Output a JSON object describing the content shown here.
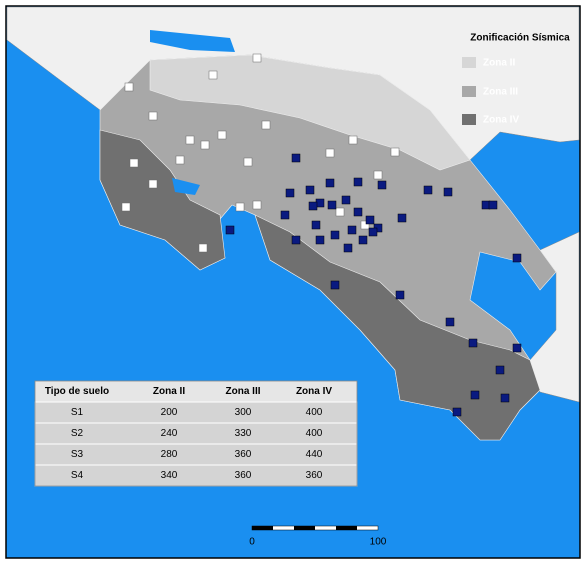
{
  "legend": {
    "title": "Zonificación Sísmica",
    "items": [
      "Zona II",
      "Zona III",
      "Zona IV"
    ]
  },
  "table": {
    "header": [
      "Tipo de suelo",
      "Zona II",
      "Zona III",
      "Zona IV"
    ],
    "rows": [
      [
        "S1",
        200,
        300,
        400
      ],
      [
        "S2",
        240,
        330,
        400
      ],
      [
        "S3",
        280,
        360,
        440
      ],
      [
        "S4",
        340,
        360,
        360
      ]
    ]
  },
  "scale": {
    "labels": [
      "0",
      "100"
    ]
  }
}
